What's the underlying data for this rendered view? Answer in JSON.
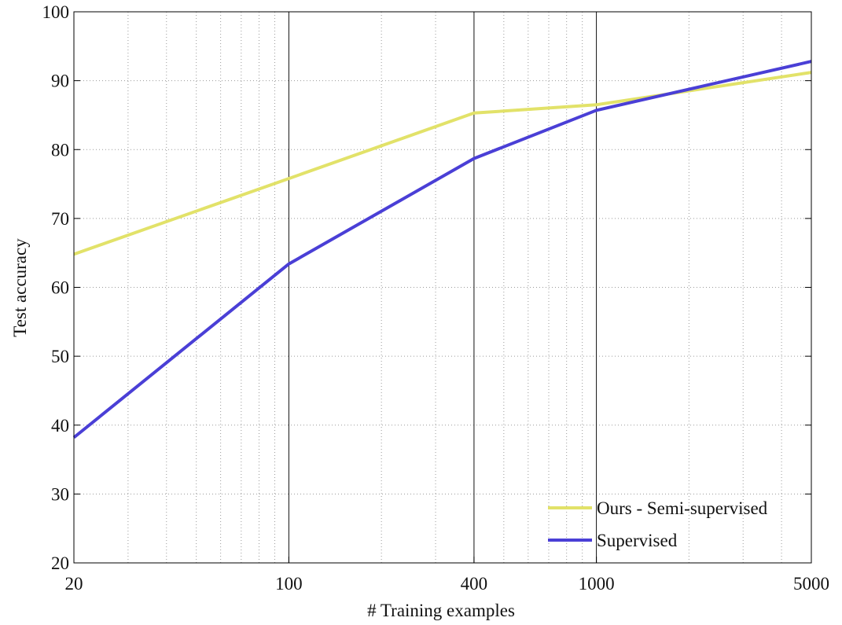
{
  "chart_data": {
    "type": "line",
    "xlabel": "# Training examples",
    "ylabel": "Test accuracy",
    "xscale": "log",
    "xlim": [
      20,
      5000
    ],
    "ylim": [
      20,
      100
    ],
    "x_tick_values": [
      20,
      100,
      400,
      1000,
      5000
    ],
    "x_tick_labels": [
      "20",
      "100",
      "400",
      "1000",
      "5000"
    ],
    "y_ticks": [
      20,
      30,
      40,
      50,
      60,
      70,
      80,
      90,
      100
    ],
    "y_tick_labels": [
      "20",
      "30",
      "40",
      "50",
      "60",
      "70",
      "80",
      "90",
      "100"
    ],
    "grid": true,
    "legend_position": "bottom-right",
    "series": [
      {
        "name": "Ours - Semi-supervised",
        "color": "#e2e269",
        "x": [
          20,
          100,
          400,
          1000,
          5000
        ],
        "y": [
          64.8,
          75.8,
          85.3,
          86.5,
          91.2
        ]
      },
      {
        "name": "Supervised",
        "color": "#4a3fd6",
        "x": [
          20,
          100,
          400,
          1000,
          5000
        ],
        "y": [
          38.2,
          63.4,
          78.7,
          85.7,
          92.8
        ]
      }
    ]
  }
}
